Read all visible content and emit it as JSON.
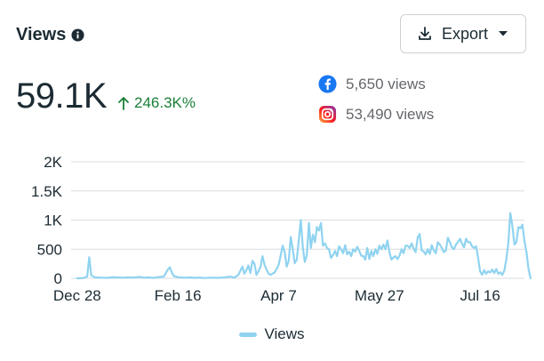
{
  "header": {
    "title": "Views",
    "export_label": "Export"
  },
  "summary": {
    "total": "59.1K",
    "change": "246.3K%"
  },
  "platforms": [
    {
      "name": "Facebook",
      "icon": "facebook-icon",
      "label": "5,650 views",
      "color": "#1877f2"
    },
    {
      "name": "Instagram",
      "icon": "instagram-icon",
      "label": "53,490 views"
    }
  ],
  "colors": {
    "line": "#8fd3f0",
    "grid": "#dadde1",
    "positive": "#1a7f37"
  },
  "chart_data": {
    "type": "line",
    "title": "",
    "xlabel": "",
    "ylabel": "",
    "x_tick_labels": [
      "Dec 28",
      "Feb 16",
      "Apr 7",
      "May 27",
      "Jul 16"
    ],
    "x_tick_days": [
      0,
      50,
      100,
      150,
      200
    ],
    "y_tick_labels": [
      "0",
      "500",
      "1K",
      "1.5K",
      "2K"
    ],
    "y_ticks": [
      0,
      500,
      1000,
      1500,
      2000
    ],
    "ylim": [
      0,
      2000
    ],
    "xlim": [
      -3,
      222
    ],
    "grid": true,
    "legend": "bottom-center",
    "series": [
      {
        "name": "Views",
        "points": [
          [
            0,
            0
          ],
          [
            3,
            5
          ],
          [
            5,
            30
          ],
          [
            6,
            360
          ],
          [
            7,
            50
          ],
          [
            9,
            15
          ],
          [
            12,
            10
          ],
          [
            15,
            8
          ],
          [
            18,
            20
          ],
          [
            20,
            15
          ],
          [
            23,
            10
          ],
          [
            25,
            18
          ],
          [
            28,
            12
          ],
          [
            31,
            25
          ],
          [
            33,
            10
          ],
          [
            35,
            15
          ],
          [
            38,
            8
          ],
          [
            40,
            20
          ],
          [
            43,
            30
          ],
          [
            45,
            150
          ],
          [
            46,
            190
          ],
          [
            47,
            100
          ],
          [
            48,
            40
          ],
          [
            50,
            20
          ],
          [
            53,
            10
          ],
          [
            56,
            15
          ],
          [
            58,
            8
          ],
          [
            61,
            12
          ],
          [
            63,
            5
          ],
          [
            66,
            10
          ],
          [
            69,
            8
          ],
          [
            72,
            12
          ],
          [
            74,
            20
          ],
          [
            76,
            30
          ],
          [
            78,
            10
          ],
          [
            80,
            60
          ],
          [
            82,
            200
          ],
          [
            83,
            80
          ],
          [
            84,
            140
          ],
          [
            85,
            220
          ],
          [
            86,
            90
          ],
          [
            87,
            300
          ],
          [
            88,
            250
          ],
          [
            89,
            60
          ],
          [
            90,
            120
          ],
          [
            91,
            200
          ],
          [
            92,
            380
          ],
          [
            93,
            230
          ],
          [
            94,
            150
          ],
          [
            95,
            80
          ],
          [
            96,
            60
          ],
          [
            98,
            100
          ],
          [
            99,
            160
          ],
          [
            100,
            230
          ],
          [
            101,
            390
          ],
          [
            102,
            560
          ],
          [
            103,
            450
          ],
          [
            104,
            200
          ],
          [
            105,
            300
          ],
          [
            106,
            710
          ],
          [
            107,
            500
          ],
          [
            108,
            260
          ],
          [
            109,
            320
          ],
          [
            110,
            650
          ],
          [
            111,
            1000
          ],
          [
            112,
            530
          ],
          [
            113,
            280
          ],
          [
            114,
            400
          ],
          [
            115,
            950
          ],
          [
            116,
            520
          ],
          [
            117,
            750
          ],
          [
            118,
            620
          ],
          [
            119,
            880
          ],
          [
            120,
            820
          ],
          [
            121,
            950
          ],
          [
            122,
            560
          ],
          [
            123,
            600
          ],
          [
            124,
            520
          ],
          [
            125,
            500
          ],
          [
            126,
            350
          ],
          [
            127,
            400
          ],
          [
            128,
            470
          ],
          [
            129,
            380
          ],
          [
            130,
            550
          ],
          [
            131,
            500
          ],
          [
            132,
            430
          ],
          [
            133,
            570
          ],
          [
            134,
            410
          ],
          [
            135,
            460
          ],
          [
            136,
            380
          ],
          [
            137,
            500
          ],
          [
            138,
            460
          ],
          [
            139,
            540
          ],
          [
            140,
            470
          ],
          [
            141,
            390
          ],
          [
            142,
            380
          ],
          [
            143,
            320
          ],
          [
            144,
            520
          ],
          [
            145,
            330
          ],
          [
            146,
            470
          ],
          [
            147,
            380
          ],
          [
            148,
            500
          ],
          [
            149,
            420
          ],
          [
            150,
            560
          ],
          [
            151,
            500
          ],
          [
            152,
            580
          ],
          [
            153,
            500
          ],
          [
            154,
            650
          ],
          [
            155,
            450
          ],
          [
            156,
            320
          ],
          [
            157,
            360
          ],
          [
            158,
            380
          ],
          [
            159,
            330
          ],
          [
            160,
            390
          ],
          [
            161,
            500
          ],
          [
            162,
            430
          ],
          [
            163,
            560
          ],
          [
            164,
            560
          ],
          [
            165,
            520
          ],
          [
            166,
            600
          ],
          [
            167,
            510
          ],
          [
            168,
            450
          ],
          [
            169,
            700
          ],
          [
            170,
            760
          ],
          [
            171,
            480
          ],
          [
            172,
            460
          ],
          [
            173,
            410
          ],
          [
            174,
            500
          ],
          [
            175,
            420
          ],
          [
            176,
            570
          ],
          [
            177,
            480
          ],
          [
            178,
            430
          ],
          [
            179,
            620
          ],
          [
            180,
            580
          ],
          [
            181,
            520
          ],
          [
            182,
            450
          ],
          [
            183,
            480
          ],
          [
            184,
            700
          ],
          [
            185,
            620
          ],
          [
            186,
            530
          ],
          [
            187,
            500
          ],
          [
            188,
            580
          ],
          [
            189,
            620
          ],
          [
            190,
            680
          ],
          [
            191,
            600
          ],
          [
            192,
            530
          ],
          [
            193,
            680
          ],
          [
            194,
            620
          ],
          [
            195,
            620
          ],
          [
            196,
            550
          ],
          [
            197,
            520
          ],
          [
            198,
            550
          ],
          [
            199,
            350
          ],
          [
            200,
            120
          ],
          [
            201,
            60
          ],
          [
            202,
            140
          ],
          [
            203,
            80
          ],
          [
            204,
            120
          ],
          [
            205,
            100
          ],
          [
            206,
            150
          ],
          [
            207,
            90
          ],
          [
            208,
            160
          ],
          [
            209,
            80
          ],
          [
            210,
            100
          ],
          [
            211,
            60
          ],
          [
            212,
            130
          ],
          [
            213,
            320
          ],
          [
            214,
            610
          ],
          [
            215,
            1120
          ],
          [
            216,
            900
          ],
          [
            217,
            580
          ],
          [
            218,
            620
          ],
          [
            219,
            880
          ],
          [
            220,
            860
          ],
          [
            221,
            920
          ],
          [
            222,
            640
          ],
          [
            223,
            450
          ],
          [
            224,
            170
          ],
          [
            225,
            0
          ]
        ]
      }
    ]
  }
}
